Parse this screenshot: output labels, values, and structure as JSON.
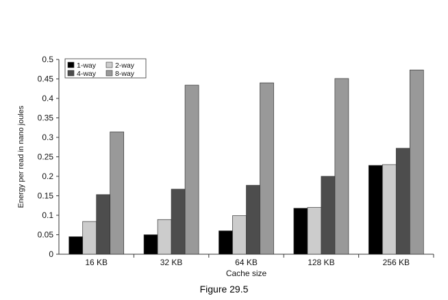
{
  "chart_data": {
    "type": "bar",
    "title": "",
    "caption": "Figure 29.5",
    "xlabel": "Cache size",
    "ylabel": "Energy per read in nano joules",
    "categories": [
      "16 KB",
      "32 KB",
      "64 KB",
      "128 KB",
      "256 KB"
    ],
    "ylim": [
      0,
      0.5
    ],
    "yticks": [
      "0",
      "0.05",
      "0.1",
      "0.15",
      "0.2",
      "0.25",
      "0.3",
      "0.35",
      "0.4",
      "0.45",
      "0.5"
    ],
    "legend_placement": "top-left",
    "grid": false,
    "series": [
      {
        "name": "1-way",
        "color": "#000000",
        "values": [
          0.045,
          0.05,
          0.06,
          0.118,
          0.228
        ]
      },
      {
        "name": "2-way",
        "color": "#cccccc",
        "values": [
          0.084,
          0.089,
          0.099,
          0.12,
          0.23
        ]
      },
      {
        "name": "4-way",
        "color": "#4d4d4d",
        "values": [
          0.153,
          0.167,
          0.177,
          0.2,
          0.272
        ]
      },
      {
        "name": "8-way",
        "color": "#999999",
        "values": [
          0.314,
          0.434,
          0.44,
          0.451,
          0.473
        ]
      }
    ]
  }
}
